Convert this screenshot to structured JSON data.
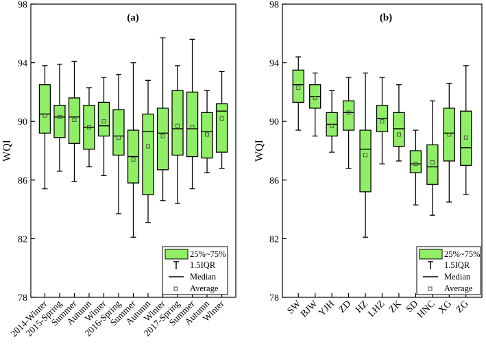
{
  "colors": {
    "box_fill": "#90ee66",
    "stroke": "#000000",
    "background": "#ffffff"
  },
  "chart_data": [
    {
      "type": "boxplot",
      "title": "(a)",
      "xlabel": "",
      "ylabel": "WQI",
      "ylim": [
        78,
        98
      ],
      "yticks": [
        78,
        82,
        86,
        90,
        94,
        98
      ],
      "categories": [
        "2014-Winter",
        "2015-Spring",
        "Summer",
        "Autumn",
        "Winter",
        "2016-Spring",
        "Summer",
        "Autumn",
        "Winter",
        "2017-Spring",
        "Summer",
        "Autumn",
        "Winter"
      ],
      "boxes": [
        {
          "min": 85.4,
          "q1": 89.2,
          "median": 90.5,
          "q3": 92.5,
          "max": 93.8,
          "mean": 90.4
        },
        {
          "min": 86.6,
          "q1": 88.9,
          "median": 90.3,
          "q3": 91.1,
          "max": 93.9,
          "mean": 90.3
        },
        {
          "min": 85.9,
          "q1": 88.5,
          "median": 90.3,
          "q3": 91.6,
          "max": 94.1,
          "mean": 90.1
        },
        {
          "min": 86.9,
          "q1": 88.1,
          "median": 89.6,
          "q3": 91.1,
          "max": 92.3,
          "mean": 89.6
        },
        {
          "min": 86.3,
          "q1": 89.0,
          "median": 89.7,
          "q3": 91.3,
          "max": 93.0,
          "mean": 90.0
        },
        {
          "min": 83.7,
          "q1": 87.7,
          "median": 89.0,
          "q3": 90.8,
          "max": 93.2,
          "mean": 88.9
        },
        {
          "min": 82.1,
          "q1": 85.8,
          "median": 87.6,
          "q3": 89.4,
          "max": 94.0,
          "mean": 87.4
        },
        {
          "min": 83.1,
          "q1": 85.0,
          "median": 89.3,
          "q3": 90.5,
          "max": 92.8,
          "mean": 88.3
        },
        {
          "min": 84.6,
          "q1": 86.7,
          "median": 89.2,
          "q3": 90.9,
          "max": 95.7,
          "mean": 89.0
        },
        {
          "min": 84.4,
          "q1": 87.7,
          "median": 89.5,
          "q3": 92.1,
          "max": 93.8,
          "mean": 89.7
        },
        {
          "min": 85.4,
          "q1": 87.6,
          "median": 89.5,
          "q3": 92.0,
          "max": 95.6,
          "mean": 89.6
        },
        {
          "min": 86.5,
          "q1": 87.5,
          "median": 89.3,
          "q3": 90.6,
          "max": 92.1,
          "mean": 89.1
        },
        {
          "min": 86.8,
          "q1": 87.9,
          "median": 90.7,
          "q3": 91.2,
          "max": 93.4,
          "mean": 90.2
        }
      ],
      "legend": {
        "position": "bottom-right",
        "entries": [
          "25%~75%",
          "1.5IQR",
          "Median",
          "Average"
        ]
      }
    },
    {
      "type": "boxplot",
      "title": "(b)",
      "xlabel": "",
      "ylabel": "WQI",
      "ylim": [
        78,
        98
      ],
      "yticks": [
        78,
        82,
        86,
        90,
        94,
        98
      ],
      "categories": [
        "SW",
        "BJW",
        "YJH",
        "ZD",
        "HZ",
        "LHZ",
        "ZK",
        "SD",
        "HNC",
        "XG",
        "ZG"
      ],
      "boxes": [
        {
          "min": 89.4,
          "q1": 91.3,
          "median": 92.5,
          "q3": 93.5,
          "max": 94.4,
          "mean": 92.3
        },
        {
          "min": 89.0,
          "q1": 90.9,
          "median": 91.7,
          "q3": 92.5,
          "max": 93.3,
          "mean": 91.6
        },
        {
          "min": 87.9,
          "q1": 89.0,
          "median": 89.8,
          "q3": 90.6,
          "max": 92.1,
          "mean": 89.7
        },
        {
          "min": 86.8,
          "q1": 89.4,
          "median": 90.6,
          "q3": 91.4,
          "max": 93.0,
          "mean": 90.6
        },
        {
          "min": 82.1,
          "q1": 85.2,
          "median": 88.1,
          "q3": 89.4,
          "max": 93.3,
          "mean": 87.7
        },
        {
          "min": 87.1,
          "q1": 89.3,
          "median": 90.2,
          "q3": 91.1,
          "max": 93.0,
          "mean": 90.0
        },
        {
          "min": 87.3,
          "q1": 88.3,
          "median": 89.5,
          "q3": 90.6,
          "max": 92.5,
          "mean": 89.1
        },
        {
          "min": 84.3,
          "q1": 86.5,
          "median": 87.1,
          "q3": 88.0,
          "max": 89.4,
          "mean": 87.1
        },
        {
          "min": 83.6,
          "q1": 85.7,
          "median": 86.9,
          "q3": 88.4,
          "max": 91.4,
          "mean": 87.2
        },
        {
          "min": 84.5,
          "q1": 87.3,
          "median": 89.2,
          "q3": 90.9,
          "max": 92.6,
          "mean": 89.1
        },
        {
          "min": 85.0,
          "q1": 87.0,
          "median": 88.2,
          "q3": 90.7,
          "max": 93.8,
          "mean": 88.9
        }
      ],
      "legend": {
        "position": "bottom-right",
        "entries": [
          "25%~75%",
          "1.5IQR",
          "Median",
          "Average"
        ]
      }
    }
  ]
}
